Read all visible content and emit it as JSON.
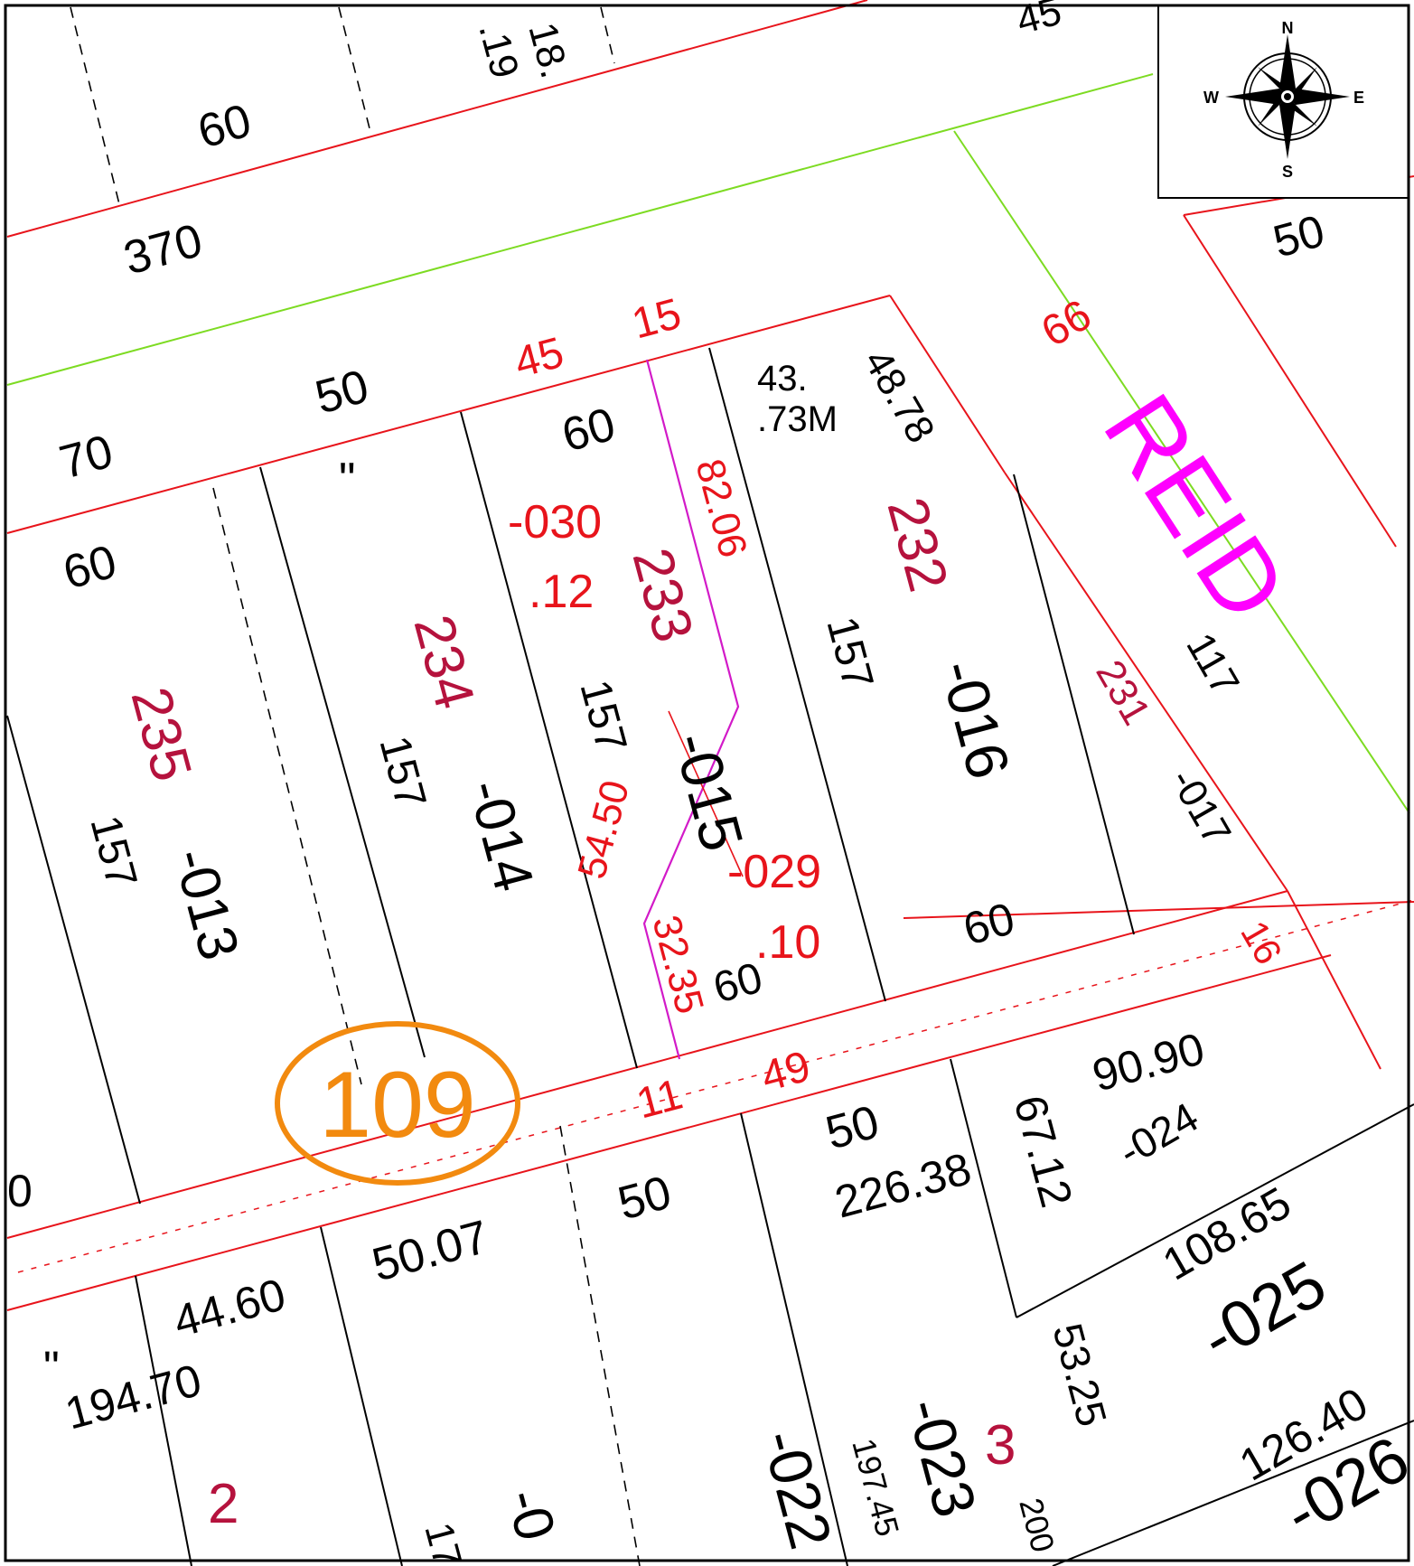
{
  "colors": {
    "lot_boundary": "#e8141b",
    "road_centerline": "#7ddb22",
    "easement_line": "#d21ac8",
    "label_black": "#000000",
    "label_red": "#e8141b",
    "lot_number": "#b5123d",
    "street_name": "#ff00ff",
    "block_number": "#f28a0f"
  },
  "compass": {
    "n": "N",
    "s": "S",
    "e": "E",
    "w": "W"
  },
  "street": {
    "name": "REID"
  },
  "block": {
    "number": "109"
  },
  "lots": {
    "l235": {
      "lot": "235",
      "parcel": "-013",
      "depth": "157",
      "frontage": "60",
      "rear": "70"
    },
    "l234": {
      "lot": "234",
      "parcel": "-014",
      "depth": "157",
      "frontage": "50",
      "ditto": "\""
    },
    "l233": {
      "lot": "233",
      "parcel": "-015",
      "depth": "157",
      "frontage": "60",
      "part_a": "-030",
      "part_a_area": ".12",
      "part_b": "-029",
      "part_b_area": ".10",
      "dim_top": "82.06",
      "dim_mid": "54.50",
      "dim_bottom": "32.35",
      "rear": "60"
    },
    "l232": {
      "lot": "232",
      "parcel": "-016",
      "depth": "157",
      "side": "48.78",
      "area_a": "43.",
      "area_b": ".73M",
      "rear": "60"
    },
    "l231": {
      "lot": "231",
      "parcel": "-017",
      "depth": "117"
    }
  },
  "frontage_top": {
    "a": "45",
    "b": "15",
    "corner": "66",
    "rear_right": "16"
  },
  "road_dims": {
    "a": "11",
    "b": "49"
  },
  "north_block": {
    "v60": "60",
    "v370": "370",
    "v18": "18.",
    "v19": ".19",
    "v45": "45",
    "v50": "50"
  },
  "south": {
    "lot2": "2",
    "lot3": "3",
    "v194": "194.70",
    "v4460": "44.60",
    "v5007": "50.07",
    "v50": "50",
    "v50b": "50",
    "v22638": "226.38",
    "v6712": "67.12",
    "v9090": "90.90",
    "p024": "-024",
    "v10865": "108.65",
    "p025": "-025",
    "v5325": "53.25",
    "v12640": "126.40",
    "p026": "-026",
    "p022": "-022",
    "p023": "-023",
    "v19745": "197.45",
    "v200": "200",
    "ditto": "\"",
    "p_cut": "-0",
    "v17": "17",
    "edge0": "0"
  }
}
